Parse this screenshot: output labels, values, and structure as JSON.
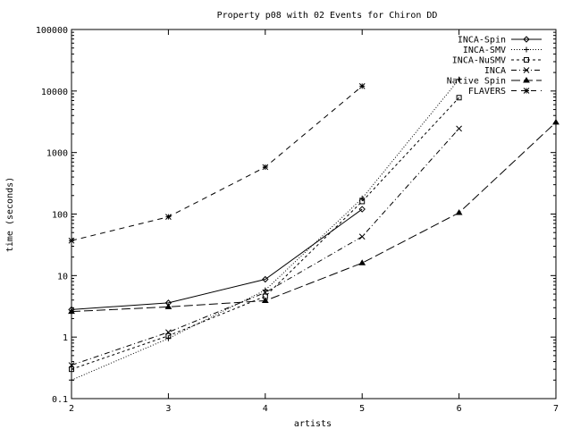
{
  "chart_data": {
    "type": "line",
    "title": "Property p08 with 02 Events for Chiron DD",
    "xlabel": "artists",
    "ylabel": "time (seconds)",
    "xlim": [
      2,
      7
    ],
    "ylim": [
      0.1,
      100000
    ],
    "yscale": "log",
    "grid": false,
    "legend_position": "top-right",
    "x_ticks": [
      2,
      3,
      4,
      5,
      6,
      7
    ],
    "x_tick_labels": [
      "2",
      "3",
      "4",
      "5",
      "6",
      "7"
    ],
    "y_ticks": [
      0.1,
      1,
      10,
      100,
      1000,
      10000,
      100000
    ],
    "y_tick_labels": [
      "0.1",
      "1",
      "10",
      "100",
      "1000",
      "10000",
      "100000"
    ],
    "series": [
      {
        "name": "INCA-Spin",
        "dash": "solid",
        "marker": "diamond",
        "x": [
          2,
          3,
          4,
          5
        ],
        "y": [
          2.8,
          3.6,
          8.7,
          120
        ]
      },
      {
        "name": "INCA-SMV",
        "dash": "dot",
        "marker": "plus",
        "x": [
          2,
          3,
          4,
          5,
          6
        ],
        "y": [
          0.2,
          0.95,
          5.8,
          180,
          15500
        ]
      },
      {
        "name": "INCA-NuSMV",
        "dash": "dash",
        "marker": "square",
        "x": [
          2,
          3,
          4,
          5,
          6
        ],
        "y": [
          0.3,
          1.05,
          4.6,
          160,
          7800
        ]
      },
      {
        "name": "INCA",
        "dash": "dashdot",
        "marker": "x",
        "x": [
          2,
          3,
          4,
          5,
          6
        ],
        "y": [
          0.35,
          1.2,
          5.3,
          43,
          2450
        ]
      },
      {
        "name": "Native Spin",
        "dash": "longdash",
        "marker": "triangle",
        "x": [
          2,
          3,
          4,
          5,
          6,
          7
        ],
        "y": [
          2.6,
          3.1,
          3.9,
          16,
          105,
          3100
        ]
      },
      {
        "name": "FLAVERS",
        "dash": "dash2",
        "marker": "star",
        "x": [
          2,
          3,
          4,
          5
        ],
        "y": [
          37,
          90,
          580,
          12000
        ]
      }
    ]
  }
}
